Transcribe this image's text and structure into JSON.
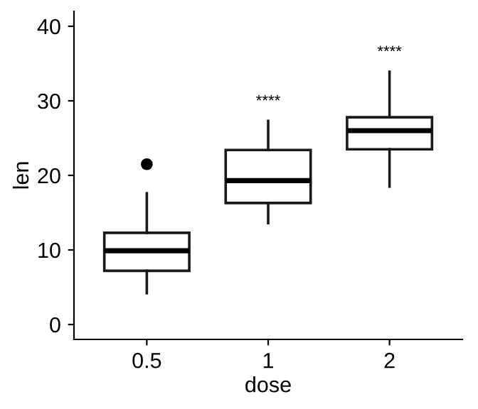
{
  "chart_data": {
    "type": "box",
    "xlabel": "dose",
    "ylabel": "len",
    "categories": [
      "0.5",
      "1",
      "2"
    ],
    "boxes": [
      {
        "low": 4.2,
        "q1": 7.2,
        "median": 9.9,
        "q3": 12.3,
        "high": 17.6,
        "outliers": [
          21.5
        ]
      },
      {
        "low": 13.6,
        "q1": 16.3,
        "median": 19.3,
        "q3": 23.4,
        "high": 27.3
      },
      {
        "low": 18.5,
        "q1": 23.5,
        "median": 26,
        "q3": 27.8,
        "high": 33.9
      }
    ],
    "ylim": [
      -2,
      42
    ],
    "yticks": [
      0,
      10,
      20,
      30,
      40
    ],
    "grid": false,
    "legend": false,
    "annotations": [
      "****",
      "****"
    ]
  }
}
